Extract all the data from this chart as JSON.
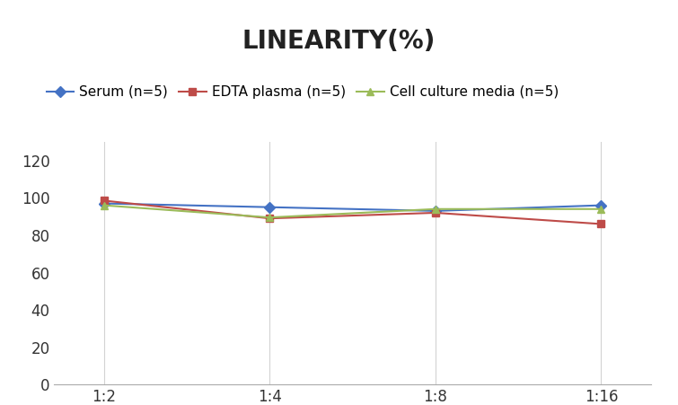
{
  "title": "LINEARITY(%)",
  "x_labels": [
    "1:2",
    "1:4",
    "1:8",
    "1:16"
  ],
  "x_positions": [
    0,
    1,
    2,
    3
  ],
  "series": [
    {
      "label": "Serum (n=5)",
      "values": [
        97,
        95,
        93,
        96
      ],
      "color": "#4472C4",
      "marker": "D",
      "markersize": 6
    },
    {
      "label": "EDTA plasma (n=5)",
      "values": [
        98.5,
        89,
        92,
        86
      ],
      "color": "#BE4B48",
      "marker": "s",
      "markersize": 6
    },
    {
      "label": "Cell culture media (n=5)",
      "values": [
        96,
        89.5,
        94,
        94
      ],
      "color": "#9BBB59",
      "marker": "^",
      "markersize": 6
    }
  ],
  "ylim": [
    0,
    130
  ],
  "yticks": [
    0,
    20,
    40,
    60,
    80,
    100,
    120
  ],
  "background_color": "#FFFFFF",
  "grid_color": "#D3D3D3",
  "title_fontsize": 20,
  "legend_fontsize": 11,
  "tick_fontsize": 12
}
